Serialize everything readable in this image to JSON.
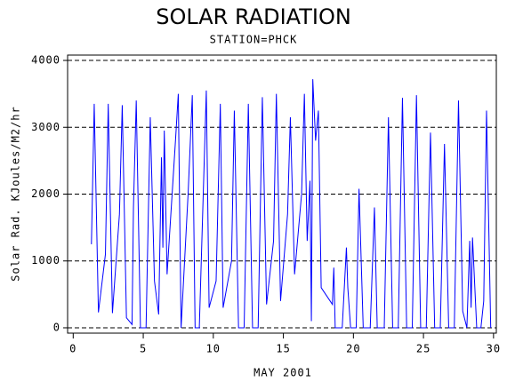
{
  "chart_data": {
    "type": "line",
    "title": "SOLAR RADIATION",
    "subtitle": "STATION=PHCK",
    "x_label": "MAY 2001",
    "y_label": "Solar Rad. KJoules/M2/hr",
    "xlim": [
      -0.4,
      30.2
    ],
    "xticks": [
      0,
      5,
      10,
      15,
      20,
      25,
      30
    ],
    "ylim": [
      -80,
      4080
    ],
    "yticks": [
      0,
      1000,
      2000,
      3000,
      4000
    ],
    "grid": true,
    "grid_style": "dashed",
    "x": [
      1.3,
      1.5,
      1.8,
      2.3,
      2.5,
      2.8,
      3.3,
      3.5,
      3.8,
      4.2,
      4.3,
      4.5,
      4.8,
      5.2,
      5.5,
      5.8,
      6.1,
      6.3,
      6.4,
      6.5,
      6.7,
      7.3,
      7.5,
      7.7,
      8.2,
      8.5,
      8.7,
      9.0,
      9.5,
      9.7,
      10.2,
      10.5,
      10.7,
      11.3,
      11.5,
      11.8,
      12.2,
      12.5,
      12.8,
      13.2,
      13.5,
      13.8,
      14.3,
      14.5,
      14.8,
      15.3,
      15.5,
      15.8,
      16.3,
      16.5,
      16.7,
      16.9,
      17.0,
      17.1,
      17.3,
      17.5,
      17.7,
      18.5,
      18.6,
      18.7,
      19.2,
      19.5,
      19.6,
      19.8,
      20.2,
      20.4,
      20.7,
      21.2,
      21.5,
      21.7,
      22.2,
      22.5,
      22.8,
      23.2,
      23.5,
      23.8,
      24.2,
      24.5,
      24.8,
      25.2,
      25.5,
      25.8,
      26.2,
      26.5,
      26.8,
      27.2,
      27.5,
      27.8,
      28.1,
      28.3,
      28.4,
      28.5,
      28.8,
      29.1,
      29.3,
      29.5,
      29.8
    ],
    "series": [
      {
        "color": "#0000ff",
        "values": [
          1250,
          3350,
          230,
          1100,
          3350,
          220,
          1700,
          3330,
          150,
          50,
          1800,
          3400,
          0,
          0,
          3150,
          700,
          200,
          2550,
          1200,
          2950,
          800,
          2800,
          3500,
          0,
          2000,
          3480,
          0,
          0,
          3550,
          300,
          700,
          3350,
          300,
          1000,
          3250,
          0,
          0,
          3350,
          0,
          0,
          3450,
          350,
          1300,
          3500,
          400,
          1700,
          3150,
          800,
          2000,
          3500,
          1300,
          2200,
          100,
          3720,
          2800,
          3250,
          600,
          350,
          900,
          0,
          0,
          1200,
          600,
          0,
          0,
          2080,
          0,
          0,
          1800,
          0,
          0,
          3150,
          0,
          0,
          3440,
          0,
          0,
          3480,
          0,
          0,
          2920,
          0,
          0,
          2750,
          0,
          0,
          3400,
          250,
          0,
          1300,
          300,
          1350,
          0,
          0,
          400,
          3250,
          0
        ]
      }
    ]
  }
}
